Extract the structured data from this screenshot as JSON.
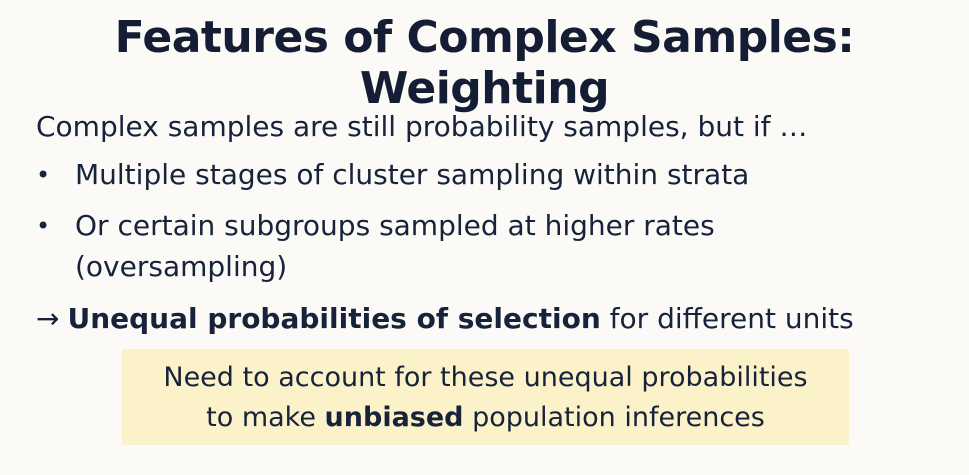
{
  "slide": {
    "title": "Features of Complex Samples: Weighting",
    "intro": "Complex samples are still probability samples, but if …",
    "bullets": [
      {
        "marker": "•",
        "text": "Multiple stages of cluster sampling within strata"
      },
      {
        "marker": "•",
        "text": "Or certain subgroups sampled at higher rates",
        "continuation": "(oversampling)"
      }
    ],
    "conclusion": {
      "arrow": "→",
      "bold": "Unequal probabilities of selection",
      "rest": " for different units"
    },
    "callout": {
      "line1": "Need to account for these unequal probabilities",
      "line2_before": "to make ",
      "line2_bold": "unbiased",
      "line2_after": " population inferences",
      "background": "#fbf2c9"
    }
  }
}
